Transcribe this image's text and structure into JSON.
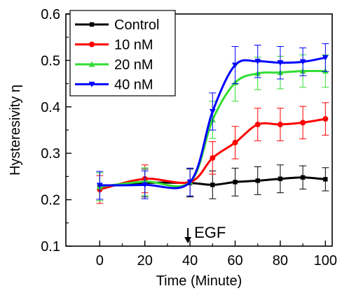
{
  "chart_data": {
    "type": "line",
    "title": "",
    "xlabel": "Time (Minute)",
    "ylabel": "Hysteresivity η",
    "xlim": [
      -15,
      103
    ],
    "ylim": [
      0.1,
      0.6
    ],
    "x_ticks": [
      0,
      20,
      40,
      60,
      80,
      100
    ],
    "y_ticks": [
      0.1,
      0.2,
      0.3,
      0.4,
      0.5,
      0.6
    ],
    "x": [
      0,
      20,
      40,
      50,
      60,
      70,
      80,
      90,
      100
    ],
    "grid": false,
    "legend": "top-left",
    "annotation": {
      "text": "EGF",
      "x": 40,
      "arrow": "down"
    },
    "series": [
      {
        "name": "Control",
        "color": "#000000",
        "marker": "square",
        "values": [
          0.228,
          0.236,
          0.236,
          0.232,
          0.238,
          0.241,
          0.245,
          0.248,
          0.244
        ],
        "errors": [
          0.03,
          0.03,
          0.03,
          0.03,
          0.03,
          0.03,
          0.03,
          0.025,
          0.025
        ]
      },
      {
        "name": "10 nM",
        "color": "#ff0000",
        "marker": "circle",
        "values": [
          0.222,
          0.245,
          0.238,
          0.29,
          0.323,
          0.362,
          0.362,
          0.366,
          0.374
        ],
        "errors": [
          0.03,
          0.03,
          0.03,
          0.035,
          0.035,
          0.035,
          0.035,
          0.035,
          0.035
        ]
      },
      {
        "name": "20 nM",
        "color": "#33dd33",
        "marker": "triangle-up",
        "values": [
          0.228,
          0.239,
          0.238,
          0.372,
          0.452,
          0.472,
          0.474,
          0.477,
          0.477
        ],
        "errors": [
          0.03,
          0.03,
          0.03,
          0.04,
          0.04,
          0.035,
          0.035,
          0.035,
          0.035
        ]
      },
      {
        "name": "40 nM",
        "color": "#0000ff",
        "marker": "triangle-down",
        "values": [
          0.231,
          0.232,
          0.238,
          0.39,
          0.49,
          0.498,
          0.495,
          0.497,
          0.506
        ],
        "errors": [
          0.03,
          0.03,
          0.03,
          0.04,
          0.04,
          0.035,
          0.035,
          0.03,
          0.03
        ]
      }
    ]
  }
}
